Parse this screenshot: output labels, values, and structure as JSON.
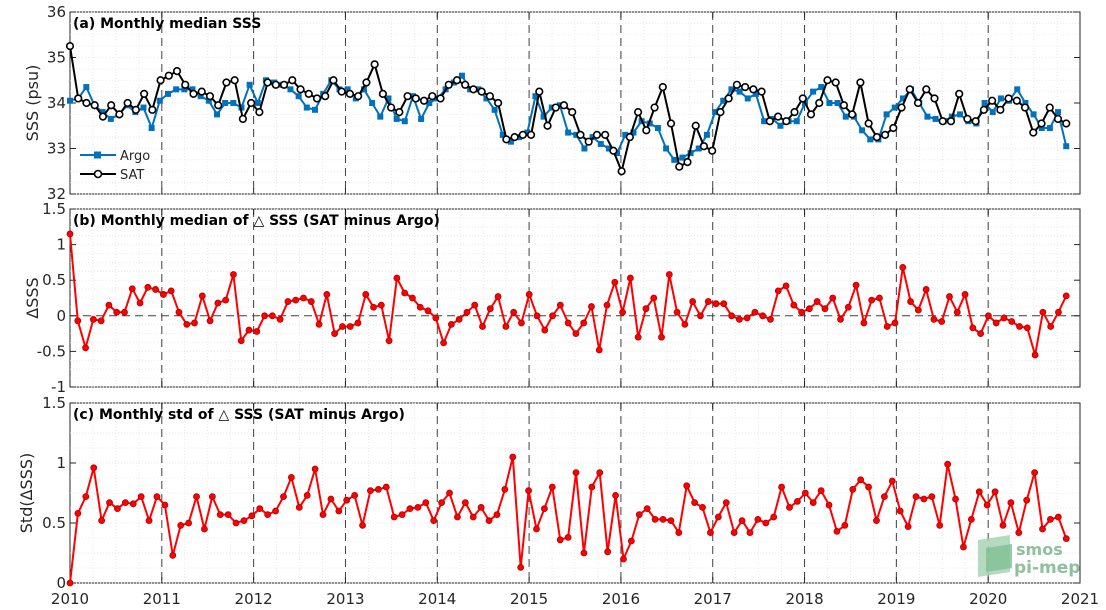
{
  "chart_data": [
    {
      "type": "line",
      "title": "(a) Monthly median SSS",
      "ylabel": "SSS (psu)",
      "xlim": [
        2010,
        2021
      ],
      "ylim": [
        32,
        36
      ],
      "yticks": [
        "32",
        "33",
        "34",
        "35",
        "36"
      ],
      "legend_position": "bottom-left",
      "series": [
        {
          "name": "Argo",
          "color": "#0072bd",
          "marker": "square",
          "values": [
            34.05,
            34.1,
            34.35,
            33.95,
            33.8,
            33.65,
            33.75,
            33.95,
            33.8,
            33.9,
            33.45,
            34.05,
            34.2,
            34.3,
            34.3,
            34.3,
            34.15,
            34.05,
            33.75,
            34.0,
            34.0,
            33.9,
            34.4,
            34.0,
            34.5,
            34.45,
            34.4,
            34.3,
            34.15,
            33.9,
            33.85,
            34.2,
            34.5,
            34.3,
            34.3,
            34.1,
            34.3,
            34.0,
            33.7,
            34.1,
            33.65,
            33.6,
            34.15,
            33.65,
            34.0,
            34.1,
            34.3,
            34.45,
            34.6,
            34.3,
            34.3,
            34.1,
            33.85,
            33.3,
            33.15,
            33.25,
            33.35,
            34.15,
            33.7,
            33.9,
            33.95,
            33.35,
            33.3,
            33.0,
            33.25,
            33.1,
            33.0,
            32.9,
            33.3,
            33.35,
            33.6,
            33.55,
            33.45,
            33.0,
            32.75,
            32.8,
            32.9,
            33.0,
            33.3,
            33.8,
            34.05,
            34.3,
            34.25,
            34.1,
            34.2,
            33.6,
            33.65,
            33.5,
            33.6,
            33.6,
            34.0,
            34.25,
            34.35,
            34.0,
            34.0,
            33.7,
            33.7,
            33.4,
            33.2,
            33.2,
            33.75,
            33.9,
            34.1,
            34.3,
            34.0,
            33.7,
            33.65,
            33.6,
            33.7,
            33.75,
            33.6,
            33.55,
            34.0,
            33.8,
            34.1,
            34.05,
            34.3,
            34.0,
            33.75,
            33.45,
            33.45,
            33.8,
            33.05
          ]
        },
        {
          "name": "SAT",
          "color": "#000000",
          "marker": "circle",
          "values": [
            35.25,
            34.1,
            34.0,
            33.95,
            33.7,
            33.95,
            33.75,
            34.0,
            33.85,
            34.2,
            33.85,
            34.5,
            34.6,
            34.7,
            34.4,
            34.2,
            34.25,
            34.15,
            33.95,
            34.45,
            34.5,
            33.65,
            34.0,
            33.8,
            34.45,
            34.4,
            34.4,
            34.5,
            34.3,
            34.2,
            34.1,
            34.15,
            34.5,
            34.25,
            34.2,
            34.15,
            34.45,
            34.85,
            34.2,
            33.9,
            33.8,
            34.15,
            34.1,
            34.05,
            34.15,
            34.1,
            34.4,
            34.5,
            34.4,
            34.3,
            34.25,
            34.15,
            34.0,
            33.2,
            33.25,
            33.3,
            33.3,
            34.25,
            33.5,
            33.9,
            33.95,
            33.8,
            33.3,
            33.15,
            33.3,
            33.3,
            32.95,
            32.5,
            33.25,
            33.8,
            33.4,
            33.9,
            34.35,
            33.55,
            32.6,
            32.7,
            33.5,
            33.05,
            32.95,
            33.8,
            34.1,
            34.4,
            34.35,
            34.3,
            34.25,
            33.6,
            33.7,
            33.6,
            33.8,
            34.1,
            33.75,
            34.0,
            34.5,
            34.45,
            33.95,
            33.75,
            34.45,
            33.55,
            33.25,
            33.3,
            33.45,
            33.9,
            34.3,
            34.0,
            34.3,
            34.1,
            33.6,
            33.6,
            34.2,
            33.65,
            33.6,
            33.85,
            34.05,
            33.85,
            34.1,
            34.05,
            33.9,
            33.35,
            33.55,
            33.9,
            33.65,
            33.55
          ]
        }
      ]
    },
    {
      "type": "line",
      "title": "(b) Monthly median of △ SSS (SAT minus Argo)",
      "ylabel": "ΔSSS",
      "xlim": [
        2010,
        2021
      ],
      "ylim": [
        -1,
        1.5
      ],
      "yticks": [
        "-1",
        "-0.5",
        "0",
        "0.5",
        "1",
        "1.5"
      ],
      "series": [
        {
          "name": "",
          "color": "#ff0000",
          "marker": "circle",
          "values": [
            1.15,
            -0.07,
            -0.45,
            -0.05,
            -0.07,
            0.15,
            0.05,
            0.05,
            0.38,
            0.18,
            0.4,
            0.37,
            0.3,
            0.35,
            0.05,
            -0.12,
            -0.1,
            0.28,
            -0.07,
            0.18,
            0.22,
            0.58,
            -0.35,
            -0.2,
            -0.22,
            0.0,
            0.0,
            -0.05,
            0.2,
            0.22,
            0.25,
            0.2,
            -0.12,
            0.3,
            -0.25,
            -0.15,
            -0.15,
            -0.1,
            0.3,
            0.12,
            0.15,
            -0.35,
            0.53,
            0.32,
            0.25,
            0.12,
            0.07,
            -0.03,
            -0.38,
            -0.12,
            -0.05,
            0.05,
            0.15,
            -0.15,
            0.1,
            0.27,
            -0.15,
            0.05,
            -0.1,
            0.3,
            0.0,
            -0.2,
            0.0,
            0.15,
            -0.1,
            -0.25,
            -0.1,
            0.13,
            -0.48,
            0.15,
            0.47,
            0.05,
            0.53,
            -0.3,
            0.1,
            0.25,
            -0.3,
            0.58,
            0.05,
            -0.12,
            0.2,
            0.0,
            0.2,
            0.17,
            0.17,
            0.0,
            -0.05,
            -0.03,
            0.05,
            0.0,
            -0.05,
            0.35,
            0.42,
            0.15,
            0.05,
            0.1,
            0.2,
            0.1,
            0.25,
            -0.05,
            0.12,
            0.43,
            -0.1,
            0.22,
            0.25,
            -0.15,
            -0.1,
            0.68,
            0.2,
            0.08,
            0.37,
            -0.05,
            -0.08,
            0.27,
            0.05,
            0.3,
            -0.17,
            -0.25,
            0.0,
            -0.1,
            -0.03,
            -0.08,
            -0.15,
            -0.17,
            -0.55,
            0.05,
            -0.15,
            0.05,
            0.28
          ]
        }
      ]
    },
    {
      "type": "line",
      "title": "(c) Monthly std of △ SSS (SAT minus Argo)",
      "ylabel": "Std(ΔSSS)",
      "xlabel": "",
      "xlim": [
        2010,
        2021
      ],
      "ylim": [
        0,
        1.5
      ],
      "yticks": [
        "0",
        "0.5",
        "1",
        "1.5"
      ],
      "xticks": [
        "2010",
        "2011",
        "2012",
        "2013",
        "2014",
        "2015",
        "2016",
        "2017",
        "2018",
        "2019",
        "2020",
        "2021"
      ],
      "series": [
        {
          "name": "",
          "color": "#ff0000",
          "marker": "circle",
          "values": [
            0.0,
            0.58,
            0.72,
            0.96,
            0.52,
            0.67,
            0.62,
            0.67,
            0.66,
            0.72,
            0.52,
            0.72,
            0.65,
            0.23,
            0.48,
            0.5,
            0.72,
            0.45,
            0.72,
            0.57,
            0.57,
            0.5,
            0.52,
            0.56,
            0.62,
            0.57,
            0.6,
            0.72,
            0.88,
            0.63,
            0.73,
            0.95,
            0.57,
            0.7,
            0.6,
            0.69,
            0.73,
            0.48,
            0.77,
            0.78,
            0.8,
            0.55,
            0.57,
            0.62,
            0.63,
            0.67,
            0.52,
            0.67,
            0.75,
            0.55,
            0.67,
            0.55,
            0.63,
            0.52,
            0.57,
            0.78,
            1.05,
            0.13,
            0.77,
            0.45,
            0.62,
            0.8,
            0.36,
            0.38,
            0.92,
            0.25,
            0.8,
            0.92,
            0.26,
            0.73,
            0.2,
            0.35,
            0.57,
            0.62,
            0.53,
            0.53,
            0.52,
            0.42,
            0.81,
            0.67,
            0.63,
            0.42,
            0.55,
            0.67,
            0.42,
            0.52,
            0.42,
            0.53,
            0.5,
            0.55,
            0.8,
            0.63,
            0.68,
            0.75,
            0.67,
            0.77,
            0.65,
            0.43,
            0.48,
            0.78,
            0.86,
            0.8,
            0.52,
            0.72,
            0.85,
            0.6,
            0.47,
            0.72,
            0.7,
            0.72,
            0.48,
            0.99,
            0.7,
            0.3,
            0.53,
            0.76,
            0.65,
            0.76,
            0.48,
            0.67,
            0.42,
            0.69,
            0.92,
            0.45,
            0.53,
            0.55,
            0.37
          ]
        }
      ]
    }
  ],
  "logo": {
    "line1": "smos",
    "line2": "pi-mep"
  }
}
